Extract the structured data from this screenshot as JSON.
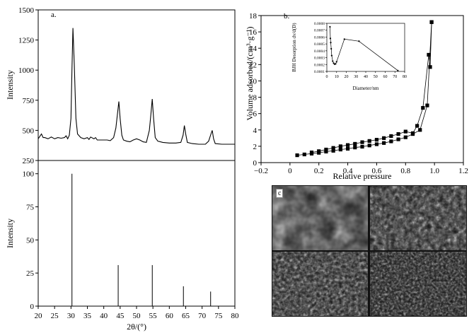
{
  "chart_data": [
    {
      "type": "line",
      "panel_label": "a.",
      "ylabel": "Intensity",
      "xlim": [
        20,
        80
      ],
      "ylim": [
        250,
        1500
      ],
      "yticks": [
        "250",
        "500",
        "750",
        "1000",
        "1250",
        "1500"
      ],
      "grid": false,
      "x": [
        20,
        21,
        21.5,
        22,
        23,
        24,
        25,
        26,
        27,
        28,
        28.5,
        29,
        29.5,
        30,
        30.3,
        30.6,
        31,
        31.5,
        32,
        33,
        34,
        35,
        35.5,
        36,
        37,
        37.5,
        38,
        39,
        40,
        41,
        42,
        43,
        43.7,
        44.2,
        44.6,
        45,
        45.5,
        46,
        47,
        48,
        49,
        50,
        51,
        52,
        53,
        53.9,
        54.4,
        54.8,
        55.2,
        55.7,
        56.5,
        58,
        60,
        62,
        63.5,
        64.2,
        64.6,
        65,
        65.5,
        67,
        69,
        71,
        72,
        72.7,
        73.1,
        73.5,
        74,
        76,
        78,
        80
      ],
      "y": [
        430,
        470,
        440,
        440,
        430,
        445,
        430,
        440,
        435,
        440,
        455,
        430,
        460,
        600,
        1000,
        1350,
        1050,
        600,
        470,
        440,
        430,
        440,
        425,
        445,
        430,
        440,
        420,
        420,
        420,
        420,
        415,
        440,
        520,
        640,
        740,
        600,
        460,
        420,
        410,
        405,
        420,
        430,
        420,
        405,
        400,
        500,
        640,
        760,
        600,
        440,
        410,
        400,
        395,
        395,
        400,
        460,
        540,
        470,
        400,
        390,
        385,
        385,
        410,
        470,
        500,
        430,
        390,
        385,
        385,
        385
      ]
    },
    {
      "type": "bar",
      "ylabel": "Intensity",
      "xlabel": "2θ/(°)",
      "xlim": [
        20,
        80
      ],
      "ylim": [
        0,
        110
      ],
      "xticks": [
        "20",
        "25",
        "30",
        "35",
        "40",
        "45",
        "50",
        "55",
        "60",
        "65",
        "70",
        "75",
        "80"
      ],
      "yticks": [
        "0",
        "25",
        "50",
        "75",
        "100"
      ],
      "x": [
        30.3,
        44.4,
        54.8,
        64.3,
        72.6
      ],
      "values": [
        100,
        31,
        31,
        15,
        11
      ]
    },
    {
      "type": "line",
      "panel_label": "b.",
      "xlabel": "Relative pressure",
      "ylabel": "Volume adsorbed/(cm³·g⁻¹)",
      "xlim": [
        -0.2,
        1.2
      ],
      "ylim": [
        0,
        18
      ],
      "xticks": [
        "−0.2",
        "0",
        "0.2",
        "0.4",
        "0.6",
        "0.8",
        "1.0",
        "1.2"
      ],
      "yticks": [
        "0",
        "2",
        "4",
        "6",
        "8",
        "10",
        "12",
        "14",
        "16",
        "18"
      ],
      "series": [
        {
          "x": [
            0.05,
            0.1,
            0.15,
            0.2,
            0.25,
            0.3,
            0.35,
            0.4,
            0.45,
            0.5,
            0.55,
            0.6,
            0.65,
            0.7,
            0.75,
            0.8,
            0.85,
            0.9,
            0.95,
            0.98
          ],
          "y": [
            0.9,
            1.0,
            1.1,
            1.2,
            1.35,
            1.45,
            1.6,
            1.7,
            1.85,
            1.95,
            2.1,
            2.25,
            2.4,
            2.6,
            2.85,
            3.1,
            3.5,
            4.0,
            7.0,
            17.2
          ]
        },
        {
          "x": [
            0.98,
            0.97,
            0.96,
            0.92,
            0.88,
            0.85,
            0.8,
            0.75,
            0.7,
            0.65,
            0.6,
            0.55,
            0.5,
            0.45,
            0.4,
            0.35,
            0.3,
            0.25,
            0.2,
            0.15
          ],
          "y": [
            17.2,
            11.7,
            13.2,
            6.7,
            4.5,
            3.6,
            3.8,
            3.5,
            3.25,
            3.0,
            2.8,
            2.65,
            2.5,
            2.3,
            2.15,
            2.0,
            1.8,
            1.6,
            1.4,
            1.25
          ]
        }
      ],
      "marker": "square"
    },
    {
      "type": "line",
      "inset": true,
      "xlabel": "Diameter/nm",
      "ylabel": "BJH Desorption dv/d(D)",
      "xlim": [
        0,
        80
      ],
      "ylim": [
        0.0001,
        0.0008
      ],
      "xticks": [
        "0",
        "10",
        "20",
        "30",
        "40",
        "50",
        "60",
        "70",
        "80"
      ],
      "yticks": [
        "0.0001",
        "0.0002",
        "0.0003",
        "0.0004",
        "0.0005",
        "0.0006",
        "0.0007",
        "0.0008"
      ],
      "x": [
        3.2,
        3.6,
        4,
        4.5,
        5,
        6,
        7,
        8,
        9,
        10,
        18,
        33,
        73
      ],
      "y": [
        0.00075,
        0.00058,
        0.00052,
        0.00043,
        0.00033,
        0.00025,
        0.00022,
        0.000205,
        0.00021,
        0.00024,
        0.00057,
        0.00054,
        0.000112
      ]
    }
  ],
  "panel_c": {
    "label": "c"
  },
  "colors": {
    "line": "#000000",
    "background": "#ffffff",
    "sem_dark": "#1a1a1a"
  }
}
